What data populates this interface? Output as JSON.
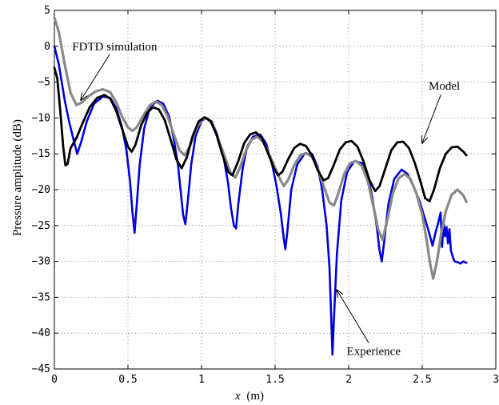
{
  "chart_data": {
    "type": "line",
    "title": "",
    "xlabel_italic": "x",
    "xlabel_unit": "(m)",
    "ylabel": "Pressure amplitude (dB)",
    "xlim": [
      0,
      3
    ],
    "ylim": [
      -45,
      5
    ],
    "x_ticks": [
      0,
      0.5,
      1,
      1.5,
      2,
      2.5,
      3
    ],
    "x_tick_labels": [
      "0",
      "0.5",
      "1",
      "1.5",
      "2",
      "2.5",
      "3"
    ],
    "y_ticks": [
      5,
      0,
      -5,
      -10,
      -15,
      -20,
      -25,
      -30,
      -35,
      -40,
      -45
    ],
    "y_tick_labels": [
      "5",
      "0",
      "−5",
      "−10",
      "−15",
      "−20",
      "−25",
      "−30",
      "−35",
      "−40",
      "−45"
    ],
    "grid": true,
    "legend": "none",
    "annotations": [
      {
        "text": "FDTD simulation",
        "text_x": 0.41,
        "text_y": 0,
        "arrow_to": [
          0.18,
          -7.5
        ]
      },
      {
        "text": "Model",
        "text_x": 2.65,
        "text_y": -5.5,
        "arrow_to": [
          2.5,
          -13.5
        ]
      },
      {
        "text": "Experience",
        "text_x": 2.17,
        "text_y": -42.5,
        "arrow_to": [
          1.92,
          -34
        ]
      }
    ],
    "series": [
      {
        "color": "#0000dd",
        "width": 2.6,
        "points": [
          [
            0.0,
            0.0
          ],
          [
            0.03,
            -2.5
          ],
          [
            0.07,
            -7.5
          ],
          [
            0.1,
            -10.5
          ],
          [
            0.13,
            -13.0
          ],
          [
            0.155,
            -15.0
          ],
          [
            0.18,
            -13.5
          ],
          [
            0.22,
            -10.5
          ],
          [
            0.27,
            -8.0
          ],
          [
            0.33,
            -7.0
          ],
          [
            0.38,
            -7.2
          ],
          [
            0.42,
            -8.6
          ],
          [
            0.46,
            -11.3
          ],
          [
            0.49,
            -14.5
          ],
          [
            0.515,
            -19.0
          ],
          [
            0.53,
            -23.0
          ],
          [
            0.545,
            -26.0
          ],
          [
            0.56,
            -22.0
          ],
          [
            0.58,
            -16.5
          ],
          [
            0.61,
            -11.5
          ],
          [
            0.65,
            -8.5
          ],
          [
            0.7,
            -7.6
          ],
          [
            0.74,
            -8.0
          ],
          [
            0.78,
            -9.8
          ],
          [
            0.81,
            -12.8
          ],
          [
            0.84,
            -16.5
          ],
          [
            0.86,
            -20.5
          ],
          [
            0.875,
            -23.5
          ],
          [
            0.89,
            -24.8
          ],
          [
            0.905,
            -22.0
          ],
          [
            0.93,
            -16.5
          ],
          [
            0.96,
            -12.5
          ],
          [
            1.0,
            -10.4
          ],
          [
            1.03,
            -10.0
          ],
          [
            1.07,
            -10.5
          ],
          [
            1.11,
            -12.5
          ],
          [
            1.15,
            -15.5
          ],
          [
            1.18,
            -19.0
          ],
          [
            1.2,
            -22.5
          ],
          [
            1.22,
            -25.0
          ],
          [
            1.235,
            -25.4
          ],
          [
            1.25,
            -22.0
          ],
          [
            1.28,
            -17.0
          ],
          [
            1.31,
            -14.0
          ],
          [
            1.35,
            -12.6
          ],
          [
            1.4,
            -12.3
          ],
          [
            1.44,
            -13.6
          ],
          [
            1.48,
            -16.5
          ],
          [
            1.51,
            -19.5
          ],
          [
            1.54,
            -23.5
          ],
          [
            1.56,
            -27.0
          ],
          [
            1.57,
            -28.3
          ],
          [
            1.585,
            -25.5
          ],
          [
            1.61,
            -20.0
          ],
          [
            1.65,
            -16.5
          ],
          [
            1.7,
            -15.0
          ],
          [
            1.75,
            -15.0
          ],
          [
            1.79,
            -16.8
          ],
          [
            1.82,
            -20.0
          ],
          [
            1.85,
            -25.0
          ],
          [
            1.87,
            -31.0
          ],
          [
            1.88,
            -37.0
          ],
          [
            1.89,
            -43.0
          ],
          [
            1.9,
            -38.0
          ],
          [
            1.92,
            -29.0
          ],
          [
            1.95,
            -21.5
          ],
          [
            1.99,
            -17.5
          ],
          [
            2.04,
            -16.0
          ],
          [
            2.09,
            -16.3
          ],
          [
            2.13,
            -18.0
          ],
          [
            2.16,
            -21.0
          ],
          [
            2.19,
            -25.0
          ],
          [
            2.21,
            -28.5
          ],
          [
            2.225,
            -30.0
          ],
          [
            2.24,
            -27.5
          ],
          [
            2.27,
            -22.0
          ],
          [
            2.31,
            -18.5
          ],
          [
            2.36,
            -17.2
          ],
          [
            2.4,
            -17.8
          ],
          [
            2.44,
            -19.5
          ],
          [
            2.48,
            -21.5
          ],
          [
            2.51,
            -23.5
          ],
          [
            2.54,
            -25.5
          ],
          [
            2.57,
            -27.8
          ],
          [
            2.59,
            -26.0
          ],
          [
            2.61,
            -24.5
          ],
          [
            2.625,
            -23.2
          ],
          [
            2.635,
            -28.0
          ],
          [
            2.645,
            -24.5
          ],
          [
            2.655,
            -26.5
          ],
          [
            2.665,
            -25.2
          ],
          [
            2.675,
            -27.5
          ],
          [
            2.685,
            -25.5
          ],
          [
            2.695,
            -28.5
          ],
          [
            2.71,
            -29.5
          ],
          [
            2.72,
            -30.0
          ],
          [
            2.74,
            -30.1
          ],
          [
            2.76,
            -30.3
          ],
          [
            2.78,
            -30.0
          ],
          [
            2.8,
            -30.2
          ]
        ]
      },
      {
        "color": "#888888",
        "width": 3.2,
        "points": [
          [
            0.0,
            4.0
          ],
          [
            0.03,
            2.0
          ],
          [
            0.07,
            -2.5
          ],
          [
            0.11,
            -6.5
          ],
          [
            0.15,
            -8.2
          ],
          [
            0.19,
            -7.8
          ],
          [
            0.23,
            -7.0
          ],
          [
            0.28,
            -6.3
          ],
          [
            0.33,
            -6.0
          ],
          [
            0.38,
            -6.4
          ],
          [
            0.42,
            -7.8
          ],
          [
            0.46,
            -9.8
          ],
          [
            0.5,
            -11.3
          ],
          [
            0.53,
            -11.8
          ],
          [
            0.56,
            -11.3
          ],
          [
            0.6,
            -9.8
          ],
          [
            0.65,
            -8.2
          ],
          [
            0.69,
            -7.7
          ],
          [
            0.73,
            -8.2
          ],
          [
            0.77,
            -9.8
          ],
          [
            0.81,
            -12.2
          ],
          [
            0.85,
            -14.5
          ],
          [
            0.885,
            -15.2
          ],
          [
            0.92,
            -14.0
          ],
          [
            0.96,
            -11.7
          ],
          [
            1.0,
            -10.2
          ],
          [
            1.035,
            -10.0
          ],
          [
            1.07,
            -10.7
          ],
          [
            1.11,
            -12.7
          ],
          [
            1.16,
            -15.5
          ],
          [
            1.2,
            -17.8
          ],
          [
            1.23,
            -18.3
          ],
          [
            1.26,
            -17.0
          ],
          [
            1.3,
            -14.6
          ],
          [
            1.34,
            -13.0
          ],
          [
            1.38,
            -12.6
          ],
          [
            1.42,
            -13.4
          ],
          [
            1.46,
            -15.0
          ],
          [
            1.5,
            -17.0
          ],
          [
            1.54,
            -18.8
          ],
          [
            1.56,
            -19.5
          ],
          [
            1.59,
            -18.6
          ],
          [
            1.63,
            -16.6
          ],
          [
            1.67,
            -15.2
          ],
          [
            1.71,
            -14.9
          ],
          [
            1.75,
            -15.4
          ],
          [
            1.79,
            -17.0
          ],
          [
            1.83,
            -19.5
          ],
          [
            1.87,
            -21.8
          ],
          [
            1.9,
            -22.2
          ],
          [
            1.93,
            -20.5
          ],
          [
            1.97,
            -17.8
          ],
          [
            2.01,
            -16.3
          ],
          [
            2.05,
            -16.0
          ],
          [
            2.09,
            -16.7
          ],
          [
            2.13,
            -18.8
          ],
          [
            2.17,
            -22.5
          ],
          [
            2.2,
            -25.5
          ],
          [
            2.23,
            -27.0
          ],
          [
            2.26,
            -24.5
          ],
          [
            2.3,
            -20.5
          ],
          [
            2.34,
            -18.4
          ],
          [
            2.38,
            -17.8
          ],
          [
            2.42,
            -18.5
          ],
          [
            2.46,
            -20.5
          ],
          [
            2.5,
            -23.5
          ],
          [
            2.53,
            -27.0
          ],
          [
            2.555,
            -30.5
          ],
          [
            2.575,
            -32.4
          ],
          [
            2.6,
            -30.0
          ],
          [
            2.63,
            -26.0
          ],
          [
            2.66,
            -23.0
          ],
          [
            2.7,
            -20.7
          ],
          [
            2.74,
            -20.0
          ],
          [
            2.78,
            -20.8
          ],
          [
            2.8,
            -21.7
          ]
        ]
      },
      {
        "color": "#000000",
        "width": 2.8,
        "points": [
          [
            0.0,
            -3.0
          ],
          [
            0.02,
            -4.5
          ],
          [
            0.04,
            -9.0
          ],
          [
            0.06,
            -14.0
          ],
          [
            0.075,
            -16.6
          ],
          [
            0.09,
            -16.4
          ],
          [
            0.11,
            -14.2
          ],
          [
            0.15,
            -12.8
          ],
          [
            0.19,
            -10.8
          ],
          [
            0.24,
            -8.5
          ],
          [
            0.29,
            -7.2
          ],
          [
            0.34,
            -6.8
          ],
          [
            0.38,
            -7.3
          ],
          [
            0.42,
            -9.0
          ],
          [
            0.46,
            -11.5
          ],
          [
            0.5,
            -14.0
          ],
          [
            0.525,
            -14.7
          ],
          [
            0.55,
            -13.8
          ],
          [
            0.59,
            -11.0
          ],
          [
            0.63,
            -9.3
          ],
          [
            0.67,
            -8.5
          ],
          [
            0.71,
            -8.8
          ],
          [
            0.75,
            -10.3
          ],
          [
            0.79,
            -13.0
          ],
          [
            0.83,
            -15.8
          ],
          [
            0.865,
            -17.0
          ],
          [
            0.9,
            -15.5
          ],
          [
            0.94,
            -12.5
          ],
          [
            0.98,
            -10.5
          ],
          [
            1.02,
            -9.9
          ],
          [
            1.06,
            -10.4
          ],
          [
            1.1,
            -12.2
          ],
          [
            1.14,
            -15.0
          ],
          [
            1.18,
            -17.5
          ],
          [
            1.21,
            -18.0
          ],
          [
            1.25,
            -16.0
          ],
          [
            1.29,
            -13.5
          ],
          [
            1.33,
            -12.3
          ],
          [
            1.37,
            -12.0
          ],
          [
            1.41,
            -12.8
          ],
          [
            1.45,
            -14.8
          ],
          [
            1.49,
            -16.9
          ],
          [
            1.52,
            -18.0
          ],
          [
            1.55,
            -17.5
          ],
          [
            1.59,
            -15.7
          ],
          [
            1.63,
            -14.2
          ],
          [
            1.67,
            -13.6
          ],
          [
            1.71,
            -13.9
          ],
          [
            1.75,
            -15.2
          ],
          [
            1.79,
            -17.3
          ],
          [
            1.83,
            -18.7
          ],
          [
            1.86,
            -18.4
          ],
          [
            1.9,
            -16.5
          ],
          [
            1.94,
            -14.4
          ],
          [
            1.98,
            -13.4
          ],
          [
            2.02,
            -13.2
          ],
          [
            2.06,
            -14.0
          ],
          [
            2.1,
            -16.0
          ],
          [
            2.14,
            -18.6
          ],
          [
            2.18,
            -20.2
          ],
          [
            2.21,
            -19.5
          ],
          [
            2.25,
            -17.0
          ],
          [
            2.29,
            -14.5
          ],
          [
            2.33,
            -13.4
          ],
          [
            2.37,
            -13.3
          ],
          [
            2.41,
            -14.2
          ],
          [
            2.45,
            -16.3
          ],
          [
            2.49,
            -19.0
          ],
          [
            2.52,
            -21.2
          ],
          [
            2.55,
            -21.6
          ],
          [
            2.58,
            -20.0
          ],
          [
            2.62,
            -17.0
          ],
          [
            2.66,
            -15.0
          ],
          [
            2.7,
            -14.1
          ],
          [
            2.74,
            -14.0
          ],
          [
            2.78,
            -14.7
          ],
          [
            2.8,
            -15.2
          ]
        ]
      }
    ]
  }
}
